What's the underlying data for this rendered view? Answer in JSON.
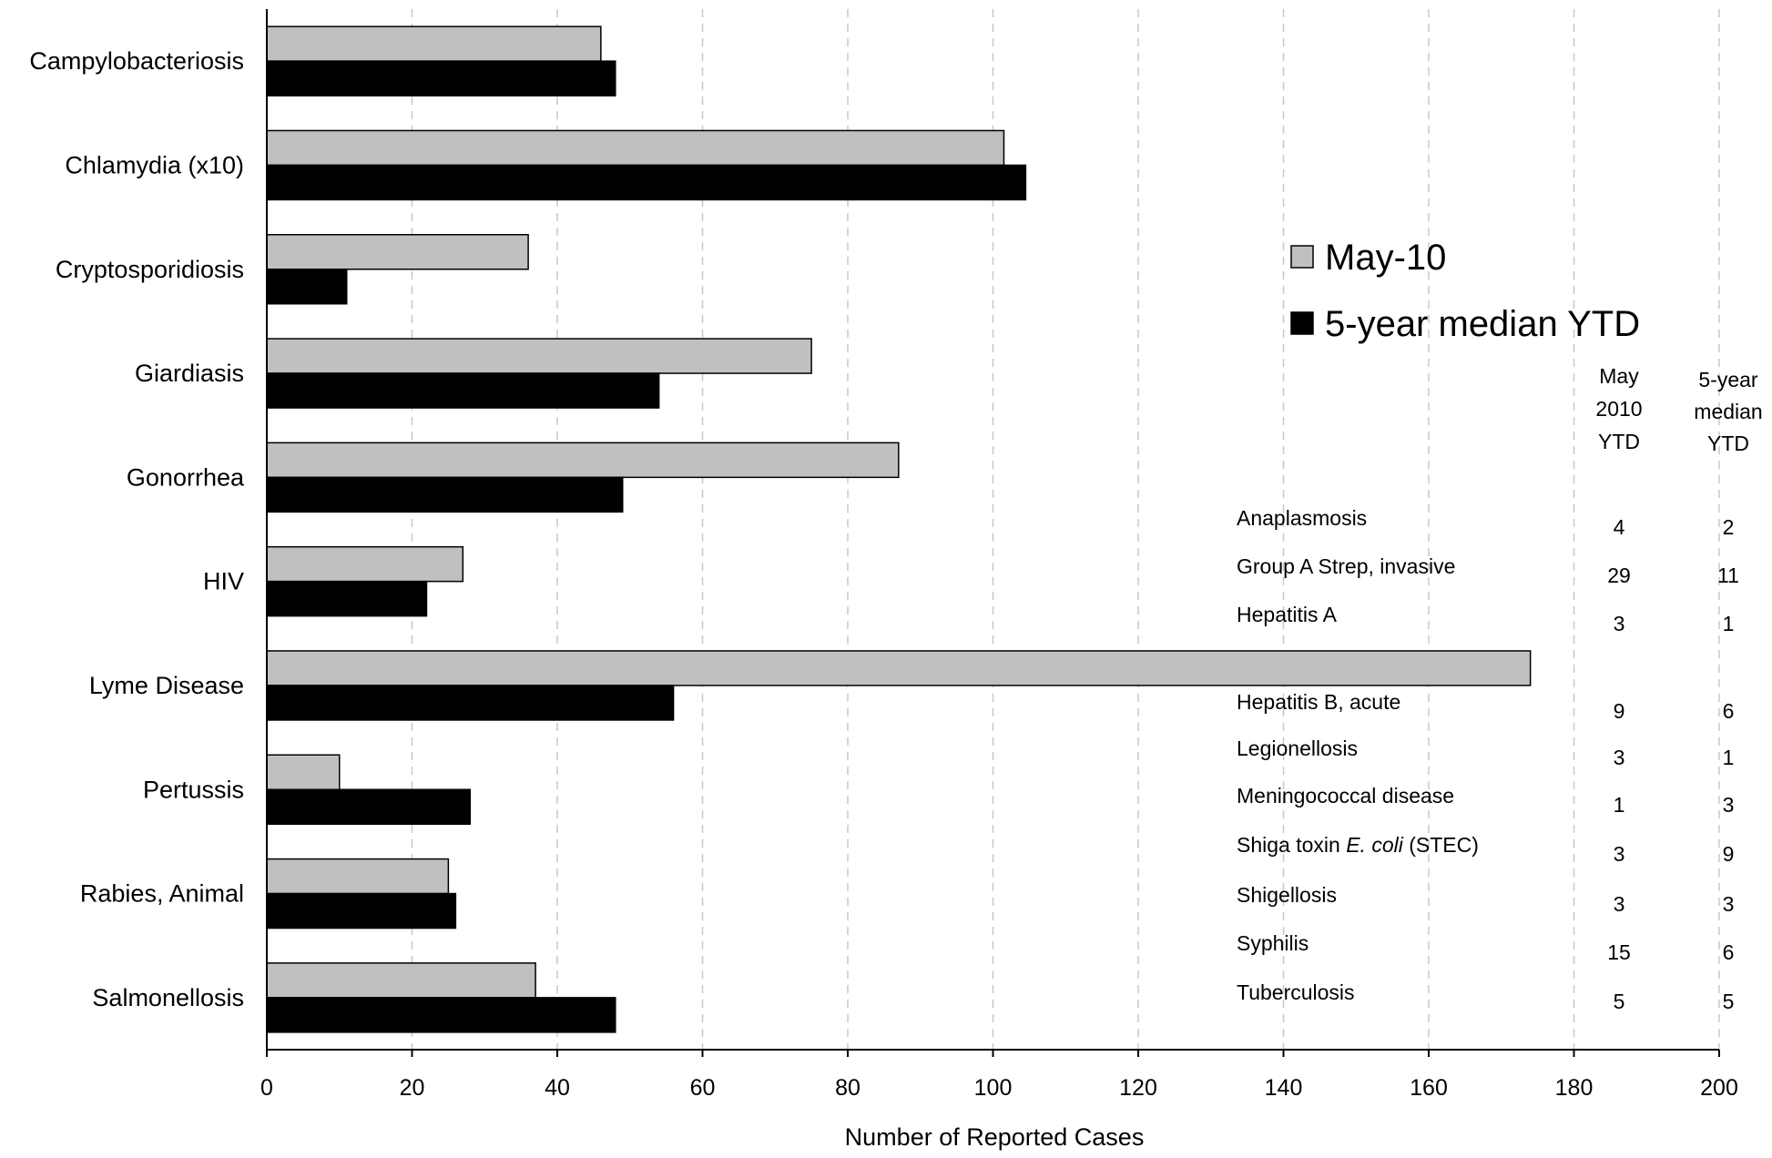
{
  "chart_data": {
    "type": "bar",
    "orientation": "horizontal",
    "categories": [
      "Campylobacteriosis",
      "Chlamydia (x10)",
      "Cryptosporidiosis",
      "Giardiasis",
      "Gonorrhea",
      "HIV",
      "Lyme Disease",
      "Pertussis",
      "Rabies, Animal",
      "Salmonellosis"
    ],
    "series": [
      {
        "name": "May-10",
        "color": "#c0c0c0",
        "values": [
          46,
          101.5,
          36,
          75,
          87,
          27,
          174,
          10,
          25,
          37
        ]
      },
      {
        "name": "5-year median YTD",
        "color": "#000000",
        "values": [
          48,
          104.5,
          11,
          54,
          49,
          22,
          56,
          28,
          26,
          48
        ]
      }
    ],
    "xlabel": "Number of Reported Cases",
    "xlim": [
      0,
      200
    ],
    "xticks": [
      0,
      20,
      40,
      60,
      80,
      100,
      120,
      140,
      160,
      180,
      200
    ],
    "grid": "vertical dashed",
    "legend_position": "right"
  },
  "table": {
    "headers": {
      "col1": [
        "May",
        "2010",
        "YTD"
      ],
      "col2": [
        "5-year",
        "median",
        "YTD"
      ]
    },
    "rows": [
      {
        "disease": "Anaplasmosis",
        "may2010": "4",
        "median": "2"
      },
      {
        "disease": "Group A Strep, invasive",
        "may2010": "29",
        "median": "11"
      },
      {
        "disease": "Hepatitis A",
        "may2010": "3",
        "median": "1"
      },
      {
        "disease": "Hepatitis B, acute",
        "may2010": "9",
        "median": "6"
      },
      {
        "disease": "Legionellosis",
        "may2010": "3",
        "median": "1"
      },
      {
        "disease": "Meningococcal disease",
        "may2010": "1",
        "median": "3"
      },
      {
        "disease": "Shiga toxin E. coli (STEC)",
        "disease_parts": [
          "Shiga toxin ",
          "E. coli",
          " (STEC)"
        ],
        "may2010": "3",
        "median": "9"
      },
      {
        "disease": "Shigellosis",
        "may2010": "3",
        "median": "3"
      },
      {
        "disease": "Syphilis",
        "may2010": "15",
        "median": "6"
      },
      {
        "disease": "Tuberculosis",
        "may2010": "5",
        "median": "5"
      }
    ]
  }
}
